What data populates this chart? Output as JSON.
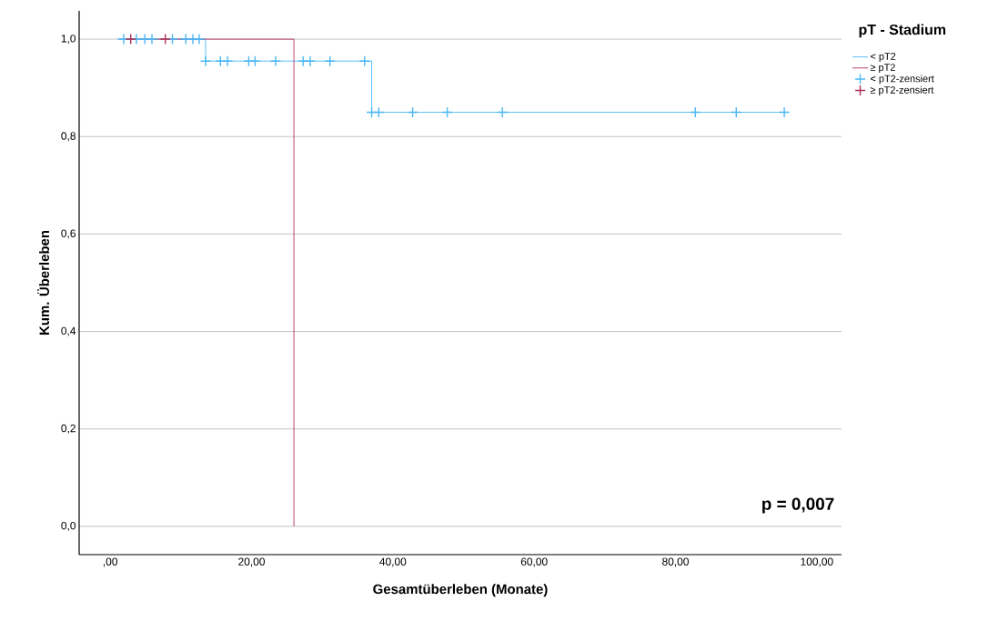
{
  "chart_data": {
    "type": "step",
    "xlabel": "Gesamtüberleben (Monate)",
    "ylabel": "Kum. Überleben",
    "legend_title": "pT - Stadium",
    "legend": "right",
    "grid": "y",
    "xlim": [
      -4.4,
      103.5
    ],
    "ylim": [
      -0.058,
      1.058
    ],
    "xticks": [
      {
        "value": 0,
        "label": ",00"
      },
      {
        "value": 20,
        "label": "20,00"
      },
      {
        "value": 40,
        "label": "40,00"
      },
      {
        "value": 60,
        "label": "60,00"
      },
      {
        "value": 80,
        "label": "80,00"
      },
      {
        "value": 100,
        "label": "100,00"
      }
    ],
    "yticks": [
      {
        "value": 0,
        "label": "0,0"
      },
      {
        "value": 0.2,
        "label": "0,2"
      },
      {
        "value": 0.4,
        "label": "0,4"
      },
      {
        "value": 0.6,
        "label": "0,6"
      },
      {
        "value": 0.8,
        "label": "0,8"
      },
      {
        "value": 1.0,
        "label": "1,0"
      }
    ],
    "annotations": [
      "p = 0,007"
    ],
    "series": [
      {
        "name": "< pT2",
        "color": "#4cb8f5",
        "x": [
          1,
          13.5,
          37,
          96
        ],
        "values": [
          1,
          0.955,
          0.85,
          0.85
        ]
      },
      {
        "name": "≥ pT2",
        "color": "#b0305a",
        "x": [
          2.9,
          26
        ],
        "values": [
          1,
          0
        ]
      },
      {
        "name": "< pT2-zensiert",
        "type": "scatter",
        "marker": "cross",
        "color": "#4cb8f5",
        "x": [
          1.9,
          3.7,
          4.9,
          5.9,
          8.8,
          10.7,
          11.7,
          12.6,
          13.5,
          15.6,
          16.6,
          19.6,
          20.5,
          23.4,
          27.3,
          28.3,
          31.1,
          36.0,
          37.0,
          38.0,
          42.8,
          47.7,
          55.5,
          82.8,
          88.6,
          95.4
        ],
        "values": [
          1,
          1,
          1,
          1,
          1,
          1,
          1,
          1,
          0.955,
          0.955,
          0.955,
          0.955,
          0.955,
          0.955,
          0.955,
          0.955,
          0.955,
          0.955,
          0.85,
          0.85,
          0.85,
          0.85,
          0.85,
          0.85,
          0.85,
          0.85
        ]
      },
      {
        "name": "≥ pT2-zensiert",
        "type": "scatter",
        "marker": "cross",
        "color": "#b0305a",
        "x": [
          2.9,
          7.8
        ],
        "values": [
          1,
          1
        ]
      }
    ]
  }
}
